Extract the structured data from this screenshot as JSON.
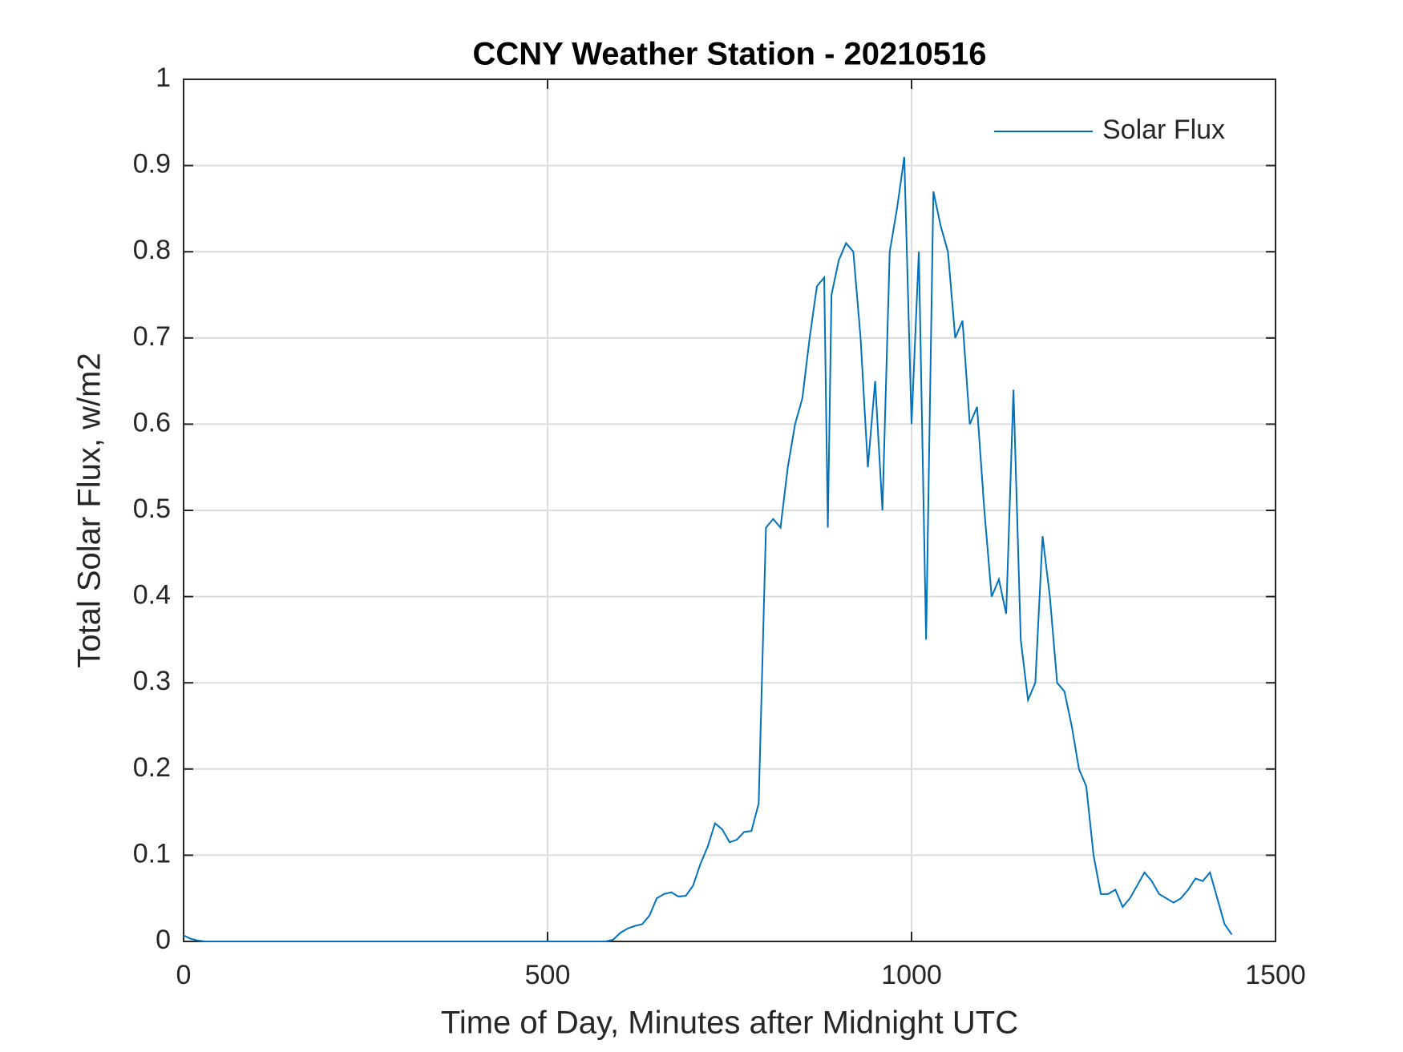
{
  "chart_data": {
    "type": "line",
    "title": "CCNY Weather Station - 20210516",
    "xlabel": "Time of Day, Minutes after Midnight UTC",
    "ylabel": "Total Solar Flux, w/m2",
    "x": [
      0,
      10,
      20,
      30,
      580,
      590,
      600,
      610,
      620,
      630,
      640,
      650,
      660,
      670,
      680,
      690,
      700,
      710,
      720,
      730,
      740,
      750,
      760,
      770,
      780,
      790,
      800,
      810,
      820,
      830,
      840,
      850,
      860,
      870,
      880,
      885,
      890,
      900,
      910,
      920,
      930,
      940,
      950,
      960,
      970,
      980,
      990,
      1000,
      1010,
      1020,
      1030,
      1040,
      1050,
      1060,
      1070,
      1080,
      1090,
      1100,
      1110,
      1120,
      1130,
      1140,
      1150,
      1160,
      1170,
      1180,
      1190,
      1200,
      1210,
      1220,
      1230,
      1240,
      1250,
      1260,
      1270,
      1280,
      1290,
      1300,
      1310,
      1320,
      1330,
      1340,
      1350,
      1360,
      1370,
      1380,
      1390,
      1400,
      1410,
      1420,
      1430,
      1440
    ],
    "series": [
      {
        "name": "Solar Flux",
        "color": "#0072bd",
        "values": [
          0.007,
          0.003,
          0.001,
          0,
          0,
          0.002,
          0.01,
          0.015,
          0.018,
          0.02,
          0.03,
          0.05,
          0.055,
          0.057,
          0.052,
          0.053,
          0.065,
          0.09,
          0.11,
          0.137,
          0.13,
          0.115,
          0.118,
          0.127,
          0.128,
          0.16,
          0.48,
          0.49,
          0.48,
          0.55,
          0.6,
          0.63,
          0.7,
          0.76,
          0.77,
          0.48,
          0.75,
          0.79,
          0.81,
          0.8,
          0.7,
          0.55,
          0.65,
          0.5,
          0.8,
          0.85,
          0.91,
          0.6,
          0.8,
          0.35,
          0.87,
          0.83,
          0.8,
          0.7,
          0.72,
          0.6,
          0.62,
          0.5,
          0.4,
          0.42,
          0.38,
          0.64,
          0.35,
          0.28,
          0.3,
          0.47,
          0.4,
          0.3,
          0.29,
          0.25,
          0.2,
          0.18,
          0.1,
          0.055,
          0.055,
          0.06,
          0.04,
          0.05,
          0.065,
          0.08,
          0.07,
          0.055,
          0.05,
          0.045,
          0.05,
          0.06,
          0.073,
          0.07,
          0.08,
          0.05,
          0.02,
          0.008
        ]
      }
    ],
    "xlim": [
      0,
      1500
    ],
    "xticks": [
      0,
      500,
      1000,
      1500
    ],
    "ylim": [
      0,
      1
    ],
    "yticks": [
      0,
      0.1,
      0.2,
      0.3,
      0.4,
      0.5,
      0.6,
      0.7,
      0.8,
      0.9,
      1
    ],
    "grid": true,
    "legend": "upper right"
  }
}
